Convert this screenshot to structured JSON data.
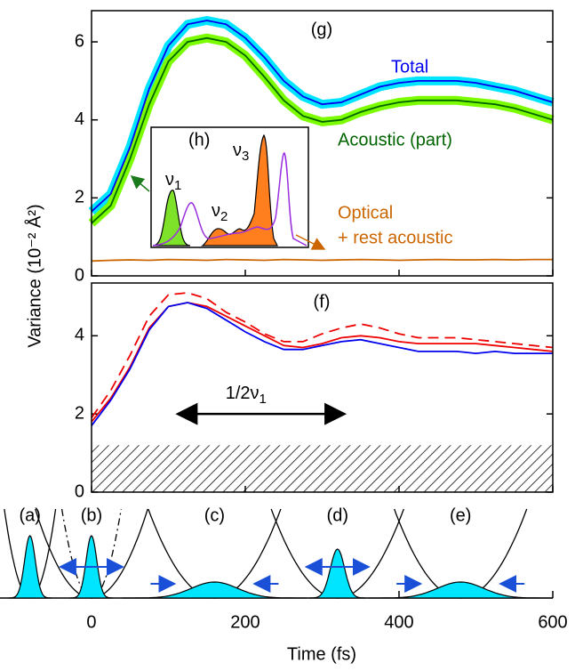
{
  "chart_data": [
    {
      "type": "line",
      "panel_label": "(g)",
      "y_label": "Variance (10⁻² Å²)",
      "x": [
        0,
        25,
        50,
        75,
        100,
        125,
        150,
        175,
        200,
        225,
        250,
        275,
        300,
        325,
        350,
        375,
        400,
        425,
        450,
        475,
        500,
        525,
        550,
        575,
        600
      ],
      "xlim": [
        0,
        600
      ],
      "ylim": [
        0,
        6.8
      ],
      "yticks": [
        0,
        2,
        4,
        6
      ],
      "series": [
        {
          "name": "Total",
          "color": "#0000ee",
          "band_color": "#00e5ff",
          "values": [
            1.65,
            2.1,
            3.3,
            4.8,
            5.9,
            6.45,
            6.55,
            6.45,
            6.1,
            5.6,
            5.0,
            4.6,
            4.4,
            4.45,
            4.65,
            4.85,
            4.95,
            5.0,
            5.0,
            5.0,
            4.95,
            4.85,
            4.75,
            4.6,
            4.45
          ]
        },
        {
          "name": "Acoustic (part)",
          "color": "#006400",
          "band_color": "#7cfc00",
          "values": [
            1.35,
            1.8,
            3.0,
            4.4,
            5.5,
            6.0,
            6.1,
            6.0,
            5.65,
            5.1,
            4.5,
            4.1,
            3.95,
            4.0,
            4.2,
            4.35,
            4.45,
            4.5,
            4.5,
            4.5,
            4.45,
            4.4,
            4.3,
            4.15,
            4.0
          ]
        },
        {
          "name": [
            "Optical",
            "+ rest acoustic"
          ],
          "color": "#cc6600",
          "values": [
            0.38,
            0.4,
            0.41,
            0.4,
            0.42,
            0.41,
            0.4,
            0.42,
            0.41,
            0.4,
            0.42,
            0.41,
            0.4,
            0.41,
            0.42,
            0.41,
            0.4,
            0.41,
            0.42,
            0.41,
            0.41,
            0.42,
            0.41,
            0.42,
            0.42
          ]
        }
      ],
      "inset": {
        "panel_label": "(h)",
        "peak_labels": [
          [
            "ν",
            "1"
          ],
          [
            "ν",
            "2"
          ],
          [
            "ν",
            "3"
          ]
        ]
      }
    },
    {
      "type": "line",
      "panel_label": "(f)",
      "x": [
        0,
        25,
        50,
        75,
        100,
        125,
        150,
        175,
        200,
        225,
        250,
        275,
        300,
        325,
        350,
        375,
        400,
        425,
        450,
        475,
        500,
        525,
        550,
        575,
        600
      ],
      "xlim": [
        0,
        600
      ],
      "ylim": [
        0,
        5.35
      ],
      "yticks": [
        0,
        2,
        4
      ],
      "series": [
        {
          "color": "#ee0000",
          "dash": false,
          "values": [
            1.8,
            2.4,
            3.2,
            4.2,
            4.75,
            4.85,
            4.75,
            4.5,
            4.25,
            4.0,
            3.75,
            3.7,
            3.8,
            3.95,
            4.0,
            3.95,
            3.85,
            3.8,
            3.8,
            3.8,
            3.8,
            3.75,
            3.7,
            3.65,
            3.6
          ]
        },
        {
          "color": "#ee0000",
          "dash": true,
          "values": [
            1.9,
            2.6,
            3.5,
            4.5,
            5.05,
            5.1,
            4.95,
            4.6,
            4.35,
            4.05,
            3.85,
            3.85,
            4.05,
            4.2,
            4.3,
            4.2,
            4.05,
            3.95,
            3.95,
            3.95,
            3.9,
            3.85,
            3.8,
            3.75,
            3.7
          ]
        },
        {
          "color": "#0000ee",
          "dash": false,
          "values": [
            1.7,
            2.35,
            3.15,
            4.15,
            4.75,
            4.85,
            4.7,
            4.4,
            4.1,
            3.85,
            3.65,
            3.65,
            3.75,
            3.85,
            3.9,
            3.8,
            3.7,
            3.6,
            3.6,
            3.6,
            3.55,
            3.6,
            3.55,
            3.55,
            3.55
          ]
        }
      ],
      "hatched_range": [
        0,
        1.2
      ],
      "arrow": {
        "label": [
          "1/2ν",
          "1"
        ],
        "x": [
          112,
          329
        ],
        "y": 2.0
      }
    },
    {
      "type": "schematic",
      "x_label": "Time (fs)",
      "xlim": [
        -119,
        600
      ],
      "xticks": [
        0,
        200,
        400,
        600
      ],
      "snapshots": [
        {
          "label": "(a)",
          "time": -80
        },
        {
          "label": "(b)",
          "time": 0
        },
        {
          "label": "(c)",
          "time": 160
        },
        {
          "label": "(d)",
          "time": 320
        },
        {
          "label": "(e)",
          "time": 480
        }
      ]
    }
  ]
}
